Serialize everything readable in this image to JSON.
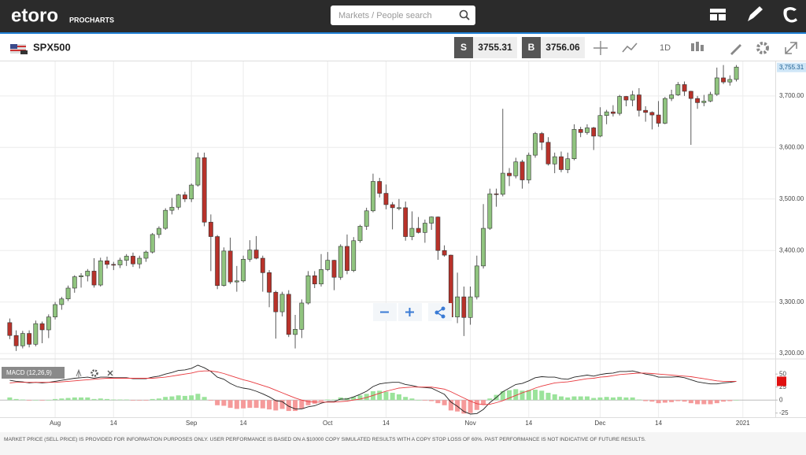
{
  "header": {
    "logo": "etoro",
    "product": "PROCHARTS",
    "search_placeholder": "Markets / People search"
  },
  "toolbar": {
    "symbol": "SPX500",
    "sell_label": "S",
    "sell_price": 3755.31,
    "buy_label": "B",
    "buy_price": 3756.06,
    "interval": "1D"
  },
  "chart_data": [
    {
      "type": "candlestick",
      "up_color": "#90c47f",
      "down_color": "#b8322a",
      "grid": true,
      "xlim": [
        -1.5,
        118
      ],
      "ylim": [
        3191,
        3767
      ],
      "xticks": [
        {
          "value": 7,
          "label": "Aug"
        },
        {
          "value": 16,
          "label": "14"
        },
        {
          "value": 28,
          "label": "Sep"
        },
        {
          "value": 36,
          "label": "14"
        },
        {
          "value": 49,
          "label": "Oct"
        },
        {
          "value": 58,
          "label": "14"
        },
        {
          "value": 71,
          "label": "Nov"
        },
        {
          "value": 80,
          "label": "14"
        },
        {
          "value": 91,
          "label": "Dec"
        },
        {
          "value": 100,
          "label": "14"
        },
        {
          "value": 113,
          "label": "2021"
        }
      ],
      "yticks": [
        {
          "value": 3200,
          "label": "3,200.00"
        },
        {
          "value": 3300,
          "label": "3,300.00"
        },
        {
          "value": 3400,
          "label": "3,400.00"
        },
        {
          "value": 3500,
          "label": "3,500.00"
        },
        {
          "value": 3600,
          "label": "3,600.00"
        },
        {
          "value": 3700,
          "label": "3,700.00"
        }
      ],
      "last_price": {
        "value": 3755.31,
        "label": "3,755.31"
      },
      "ohlc": [
        [
          3260,
          3268,
          3228,
          3235
        ],
        [
          3235,
          3245,
          3205,
          3215
        ],
        [
          3215,
          3244,
          3210,
          3239
        ],
        [
          3239,
          3245,
          3212,
          3218
        ],
        [
          3218,
          3264,
          3214,
          3258
        ],
        [
          3258,
          3262,
          3220,
          3246
        ],
        [
          3246,
          3276,
          3230,
          3271
        ],
        [
          3271,
          3300,
          3266,
          3295
        ],
        [
          3295,
          3310,
          3285,
          3306
        ],
        [
          3306,
          3332,
          3302,
          3327
        ],
        [
          3327,
          3352,
          3318,
          3349
        ],
        [
          3349,
          3356,
          3328,
          3351
        ],
        [
          3351,
          3364,
          3340,
          3360
        ],
        [
          3360,
          3385,
          3328,
          3333
        ],
        [
          3333,
          3386,
          3330,
          3380
        ],
        [
          3380,
          3388,
          3365,
          3373
        ],
        [
          3373,
          3378,
          3362,
          3372
        ],
        [
          3372,
          3386,
          3366,
          3381
        ],
        [
          3381,
          3393,
          3370,
          3389
        ],
        [
          3389,
          3396,
          3368,
          3374
        ],
        [
          3374,
          3390,
          3365,
          3385
        ],
        [
          3385,
          3400,
          3378,
          3397
        ],
        [
          3397,
          3434,
          3394,
          3431
        ],
        [
          3431,
          3447,
          3424,
          3443
        ],
        [
          3443,
          3482,
          3440,
          3478
        ],
        [
          3478,
          3502,
          3470,
          3484
        ],
        [
          3484,
          3510,
          3479,
          3508
        ],
        [
          3508,
          3514,
          3494,
          3500
        ],
        [
          3500,
          3530,
          3494,
          3527
        ],
        [
          3527,
          3590,
          3524,
          3580
        ],
        [
          3580,
          3590,
          3447,
          3455
        ],
        [
          3455,
          3470,
          3360,
          3427
        ],
        [
          3427,
          3430,
          3325,
          3332
        ],
        [
          3332,
          3406,
          3330,
          3399
        ],
        [
          3399,
          3425,
          3335,
          3339
        ],
        [
          3339,
          3370,
          3320,
          3341
        ],
        [
          3341,
          3390,
          3338,
          3383
        ],
        [
          3383,
          3420,
          3378,
          3401
        ],
        [
          3401,
          3428,
          3383,
          3385
        ],
        [
          3385,
          3390,
          3320,
          3357
        ],
        [
          3357,
          3362,
          3290,
          3319
        ],
        [
          3319,
          3322,
          3229,
          3281
        ],
        [
          3281,
          3320,
          3272,
          3315
        ],
        [
          3315,
          3323,
          3232,
          3237
        ],
        [
          3237,
          3275,
          3210,
          3247
        ],
        [
          3247,
          3305,
          3230,
          3298
        ],
        [
          3298,
          3360,
          3295,
          3351
        ],
        [
          3351,
          3360,
          3327,
          3335
        ],
        [
          3335,
          3393,
          3330,
          3363
        ],
        [
          3363,
          3397,
          3360,
          3381
        ],
        [
          3381,
          3382,
          3323,
          3348
        ],
        [
          3348,
          3412,
          3343,
          3408
        ],
        [
          3408,
          3431,
          3354,
          3361
        ],
        [
          3361,
          3426,
          3358,
          3419
        ],
        [
          3419,
          3450,
          3415,
          3447
        ],
        [
          3447,
          3483,
          3440,
          3477
        ],
        [
          3477,
          3549,
          3474,
          3534
        ],
        [
          3534,
          3541,
          3503,
          3511
        ],
        [
          3511,
          3528,
          3480,
          3489
        ],
        [
          3489,
          3494,
          3441,
          3483
        ],
        [
          3483,
          3500,
          3478,
          3483
        ],
        [
          3483,
          3495,
          3419,
          3427
        ],
        [
          3427,
          3476,
          3420,
          3443
        ],
        [
          3443,
          3465,
          3433,
          3435
        ],
        [
          3435,
          3460,
          3415,
          3453
        ],
        [
          3453,
          3466,
          3440,
          3465
        ],
        [
          3465,
          3466,
          3382,
          3400
        ],
        [
          3400,
          3410,
          3388,
          3391
        ],
        [
          3391,
          3392,
          3268,
          3271
        ],
        [
          3271,
          3357,
          3259,
          3310
        ],
        [
          3310,
          3330,
          3234,
          3270
        ],
        [
          3270,
          3330,
          3256,
          3310
        ],
        [
          3310,
          3390,
          3305,
          3370
        ],
        [
          3370,
          3490,
          3365,
          3443
        ],
        [
          3443,
          3520,
          3440,
          3510
        ],
        [
          3510,
          3520,
          3485,
          3509
        ],
        [
          3509,
          3675,
          3505,
          3550
        ],
        [
          3550,
          3560,
          3525,
          3545
        ],
        [
          3545,
          3580,
          3540,
          3572
        ],
        [
          3572,
          3576,
          3520,
          3537
        ],
        [
          3537,
          3590,
          3530,
          3585
        ],
        [
          3585,
          3630,
          3580,
          3627
        ],
        [
          3627,
          3630,
          3595,
          3610
        ],
        [
          3610,
          3620,
          3565,
          3568
        ],
        [
          3568,
          3590,
          3550,
          3582
        ],
        [
          3582,
          3592,
          3552,
          3557
        ],
        [
          3557,
          3590,
          3550,
          3578
        ],
        [
          3578,
          3645,
          3575,
          3635
        ],
        [
          3635,
          3640,
          3620,
          3629
        ],
        [
          3629,
          3645,
          3625,
          3638
        ],
        [
          3638,
          3640,
          3595,
          3622
        ],
        [
          3622,
          3678,
          3620,
          3662
        ],
        [
          3662,
          3673,
          3645,
          3669
        ],
        [
          3669,
          3682,
          3660,
          3666
        ],
        [
          3666,
          3702,
          3662,
          3699
        ],
        [
          3699,
          3700,
          3680,
          3692
        ],
        [
          3692,
          3710,
          3680,
          3702
        ],
        [
          3702,
          3715,
          3660,
          3672
        ],
        [
          3672,
          3680,
          3650,
          3668
        ],
        [
          3668,
          3670,
          3635,
          3663
        ],
        [
          3663,
          3690,
          3640,
          3647
        ],
        [
          3647,
          3698,
          3645,
          3695
        ],
        [
          3695,
          3712,
          3690,
          3702
        ],
        [
          3702,
          3727,
          3700,
          3722
        ],
        [
          3722,
          3728,
          3700,
          3709
        ],
        [
          3709,
          3710,
          3605,
          3695
        ],
        [
          3695,
          3700,
          3675,
          3687
        ],
        [
          3687,
          3702,
          3680,
          3690
        ],
        [
          3690,
          3708,
          3688,
          3703
        ],
        [
          3703,
          3755,
          3700,
          3735
        ],
        [
          3735,
          3760,
          3723,
          3727
        ],
        [
          3727,
          3740,
          3720,
          3732
        ],
        [
          3732,
          3760,
          3728,
          3756
        ]
      ]
    },
    {
      "type": "macd",
      "title": "MACD (12,26,9)",
      "ylim": [
        -33,
        76
      ],
      "yticks": [
        -25,
        0,
        25,
        50
      ],
      "series": [
        {
          "color": "#222222",
          "values": [
            38,
            36,
            35,
            33,
            34,
            33,
            34,
            36,
            38,
            40,
            42,
            43,
            44,
            42,
            44,
            44,
            43,
            43,
            43,
            41,
            41,
            41,
            44,
            46,
            50,
            53,
            57,
            58,
            61,
            67,
            62,
            55,
            44,
            40,
            32,
            26,
            23,
            21,
            17,
            12,
            6,
            -1,
            -3,
            -12,
            -17,
            -17,
            -13,
            -11,
            -6,
            -3,
            -3,
            2,
            2,
            6,
            11,
            17,
            26,
            31,
            33,
            34,
            34,
            30,
            28,
            25,
            24,
            23,
            17,
            11,
            -4,
            -12,
            -22,
            -27,
            -26,
            -18,
            -5,
            5,
            16,
            23,
            30,
            32,
            37,
            43,
            45,
            44,
            44,
            41,
            40,
            44,
            46,
            48,
            46,
            49,
            51,
            52,
            55,
            55,
            56,
            53,
            50,
            48,
            44,
            44,
            44,
            45,
            43,
            39,
            35,
            33,
            31,
            31,
            33,
            34,
            36
          ]
        },
        {
          "color": "#e8383d",
          "values": [
            33,
            34,
            34,
            34,
            34,
            34,
            34,
            34,
            35,
            36,
            37,
            38,
            39,
            40,
            41,
            42,
            42,
            42,
            42,
            42,
            42,
            42,
            42,
            43,
            44,
            46,
            48,
            50,
            52,
            55,
            56,
            56,
            54,
            51,
            47,
            43,
            39,
            36,
            32,
            28,
            24,
            19,
            14,
            9,
            4,
            0,
            -3,
            -4,
            -4,
            -4,
            -4,
            -3,
            -2,
            0,
            2,
            5,
            9,
            13,
            17,
            20,
            23,
            24,
            25,
            25,
            25,
            25,
            23,
            21,
            16,
            10,
            4,
            -2,
            -7,
            -9,
            -8,
            -5,
            -1,
            4,
            9,
            14,
            18,
            23,
            27,
            30,
            33,
            34,
            35,
            37,
            39,
            41,
            42,
            44,
            45,
            47,
            49,
            50,
            51,
            52,
            52,
            51,
            50,
            49,
            48,
            47,
            46,
            45,
            43,
            41,
            39,
            37,
            36,
            36,
            36
          ]
        }
      ],
      "histogram": {
        "up_color": "#9be39b",
        "down_color": "#f59a9a",
        "values": [
          5,
          2,
          1,
          -1,
          0,
          -1,
          0,
          2,
          3,
          4,
          5,
          5,
          5,
          2,
          3,
          2,
          1,
          1,
          1,
          -1,
          -1,
          -1,
          2,
          3,
          6,
          7,
          9,
          8,
          9,
          12,
          6,
          -1,
          -10,
          -11,
          -15,
          -17,
          -16,
          -15,
          -15,
          -16,
          -18,
          -20,
          -17,
          -21,
          -21,
          -17,
          -10,
          -7,
          -2,
          1,
          1,
          5,
          4,
          6,
          9,
          12,
          17,
          18,
          16,
          14,
          11,
          6,
          3,
          0,
          -1,
          -2,
          -6,
          -10,
          -20,
          -22,
          -26,
          -25,
          -19,
          -9,
          3,
          10,
          17,
          19,
          21,
          18,
          19,
          20,
          18,
          14,
          11,
          7,
          5,
          7,
          7,
          7,
          4,
          5,
          6,
          5,
          6,
          5,
          5,
          1,
          -2,
          -3,
          -6,
          -5,
          -4,
          -2,
          -3,
          -6,
          -8,
          -8,
          -8,
          -6,
          -3,
          -2,
          0
        ]
      }
    }
  ],
  "disclaimer": "MARKET PRICE (SELL PRICE) IS PROVIDED FOR INFORMATION PURPOSES ONLY. USER PERFORMANCE IS BASED ON A $10000 COPY SIMULATED RESULTS WITH A COPY STOP LOSS OF 60%. PAST PERFORMANCE IS NOT INDICATIVE OF FUTURE RESULTS."
}
